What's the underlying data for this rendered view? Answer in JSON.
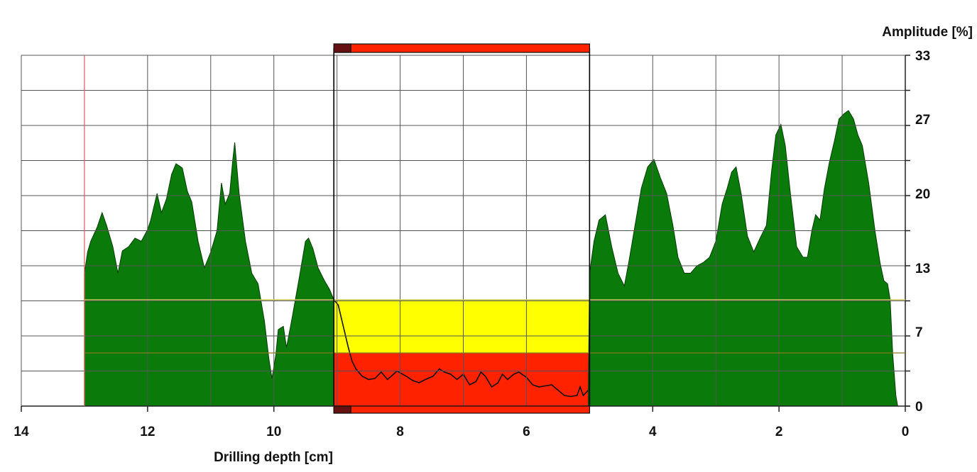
{
  "chart_data": {
    "type": "area",
    "xlabel": "Drilling depth [cm]",
    "ylabel": "Amplitude [%]",
    "x_reversed": true,
    "xlim": [
      14,
      0
    ],
    "ylim": [
      0,
      33
    ],
    "x_ticks": [
      14,
      12,
      10,
      8,
      6,
      4,
      2,
      0
    ],
    "y_ticks": [
      0,
      7,
      13,
      20,
      27,
      33
    ],
    "grid": true,
    "colors": {
      "fill_normal": "#0a7a0a",
      "fill_zone_upper": "#ffff00",
      "fill_zone_lower": "#ff2200",
      "marker_bar": "#ff2200",
      "marker_bar_end": "#661111",
      "grid": "#555555",
      "threshold_line": "#c8c85a",
      "start_line": "#e06060"
    },
    "start_depth": 13,
    "threshold_upper": 10,
    "threshold_lower": 5,
    "marked_zone": [
      9.05,
      5.0
    ],
    "series": [
      {
        "points": [
          [
            13.0,
            12.5
          ],
          [
            12.95,
            14.5
          ],
          [
            12.9,
            15.5
          ],
          [
            12.8,
            16.8
          ],
          [
            12.72,
            18.2
          ],
          [
            12.65,
            17.0
          ],
          [
            12.55,
            15.0
          ],
          [
            12.47,
            12.5
          ],
          [
            12.4,
            14.6
          ],
          [
            12.3,
            15.0
          ],
          [
            12.2,
            15.8
          ],
          [
            12.1,
            15.5
          ],
          [
            12.0,
            16.6
          ],
          [
            11.95,
            17.5
          ],
          [
            11.85,
            20.0
          ],
          [
            11.78,
            18.2
          ],
          [
            11.7,
            19.5
          ],
          [
            11.62,
            21.8
          ],
          [
            11.55,
            22.8
          ],
          [
            11.45,
            22.4
          ],
          [
            11.37,
            20.2
          ],
          [
            11.3,
            19.2
          ],
          [
            11.2,
            15.5
          ],
          [
            11.1,
            13.0
          ],
          [
            11.0,
            14.5
          ],
          [
            10.9,
            16.5
          ],
          [
            10.83,
            21.0
          ],
          [
            10.77,
            19.0
          ],
          [
            10.7,
            20.0
          ],
          [
            10.65,
            23.2
          ],
          [
            10.62,
            24.8
          ],
          [
            10.55,
            20.0
          ],
          [
            10.45,
            15.5
          ],
          [
            10.35,
            12.5
          ],
          [
            10.25,
            11.5
          ],
          [
            10.15,
            8.0
          ],
          [
            10.08,
            4.5
          ],
          [
            10.03,
            2.6
          ],
          [
            9.97,
            4.8
          ],
          [
            9.93,
            7.2
          ],
          [
            9.85,
            7.5
          ],
          [
            9.8,
            5.5
          ],
          [
            9.72,
            8.0
          ],
          [
            9.6,
            12.0
          ],
          [
            9.5,
            15.5
          ],
          [
            9.45,
            15.8
          ],
          [
            9.38,
            14.8
          ],
          [
            9.3,
            13.0
          ],
          [
            9.2,
            11.8
          ],
          [
            9.12,
            11.0
          ],
          [
            9.05,
            10.0
          ],
          [
            8.98,
            9.5
          ],
          [
            8.9,
            7.5
          ],
          [
            8.82,
            5.5
          ],
          [
            8.76,
            4.2
          ],
          [
            8.7,
            3.5
          ],
          [
            8.6,
            2.8
          ],
          [
            8.5,
            2.5
          ],
          [
            8.4,
            2.6
          ],
          [
            8.3,
            3.2
          ],
          [
            8.2,
            2.5
          ],
          [
            8.05,
            3.3
          ],
          [
            7.9,
            2.8
          ],
          [
            7.8,
            2.4
          ],
          [
            7.7,
            2.2
          ],
          [
            7.6,
            2.5
          ],
          [
            7.48,
            2.8
          ],
          [
            7.38,
            3.5
          ],
          [
            7.3,
            3.2
          ],
          [
            7.2,
            3.0
          ],
          [
            7.1,
            2.5
          ],
          [
            7.0,
            3.0
          ],
          [
            6.9,
            2.0
          ],
          [
            6.8,
            2.3
          ],
          [
            6.72,
            3.2
          ],
          [
            6.65,
            2.8
          ],
          [
            6.55,
            1.8
          ],
          [
            6.45,
            2.2
          ],
          [
            6.38,
            3.0
          ],
          [
            6.3,
            2.5
          ],
          [
            6.2,
            3.0
          ],
          [
            6.12,
            3.2
          ],
          [
            6.0,
            2.7
          ],
          [
            5.9,
            2.0
          ],
          [
            5.8,
            1.8
          ],
          [
            5.7,
            1.9
          ],
          [
            5.6,
            2.0
          ],
          [
            5.5,
            1.5
          ],
          [
            5.4,
            1.0
          ],
          [
            5.3,
            0.9
          ],
          [
            5.2,
            1.0
          ],
          [
            5.15,
            1.8
          ],
          [
            5.1,
            1.0
          ],
          [
            5.02,
            1.5
          ],
          [
            5.0,
            12.5
          ],
          [
            4.93,
            15.5
          ],
          [
            4.85,
            17.5
          ],
          [
            4.75,
            18.0
          ],
          [
            4.65,
            15.0
          ],
          [
            4.55,
            12.5
          ],
          [
            4.45,
            11.3
          ],
          [
            4.38,
            13.5
          ],
          [
            4.28,
            17.0
          ],
          [
            4.18,
            20.5
          ],
          [
            4.08,
            22.5
          ],
          [
            3.98,
            23.2
          ],
          [
            3.88,
            21.5
          ],
          [
            3.78,
            20.0
          ],
          [
            3.68,
            17.0
          ],
          [
            3.6,
            14.0
          ],
          [
            3.5,
            12.5
          ],
          [
            3.4,
            12.5
          ],
          [
            3.3,
            13.2
          ],
          [
            3.2,
            13.5
          ],
          [
            3.1,
            14.0
          ],
          [
            3.0,
            15.5
          ],
          [
            2.9,
            19.0
          ],
          [
            2.82,
            20.5
          ],
          [
            2.75,
            22.0
          ],
          [
            2.68,
            22.5
          ],
          [
            2.6,
            20.0
          ],
          [
            2.5,
            16.0
          ],
          [
            2.4,
            14.5
          ],
          [
            2.3,
            15.8
          ],
          [
            2.2,
            17.0
          ],
          [
            2.12,
            22.0
          ],
          [
            2.05,
            25.5
          ],
          [
            1.97,
            26.5
          ],
          [
            1.9,
            24.5
          ],
          [
            1.82,
            20.0
          ],
          [
            1.72,
            15.0
          ],
          [
            1.62,
            14.0
          ],
          [
            1.55,
            14.0
          ],
          [
            1.48,
            16.5
          ],
          [
            1.42,
            18.0
          ],
          [
            1.35,
            17.5
          ],
          [
            1.28,
            20.5
          ],
          [
            1.2,
            23.0
          ],
          [
            1.12,
            25.0
          ],
          [
            1.05,
            27.0
          ],
          [
            0.97,
            27.5
          ],
          [
            0.9,
            27.8
          ],
          [
            0.82,
            27.0
          ],
          [
            0.75,
            25.5
          ],
          [
            0.68,
            24.5
          ],
          [
            0.58,
            21.0
          ],
          [
            0.48,
            16.5
          ],
          [
            0.4,
            13.5
          ],
          [
            0.34,
            11.8
          ],
          [
            0.28,
            11.5
          ],
          [
            0.24,
            10.0
          ],
          [
            0.2,
            5.0
          ],
          [
            0.15,
            1.0
          ],
          [
            0.12,
            0.0
          ]
        ]
      }
    ]
  }
}
